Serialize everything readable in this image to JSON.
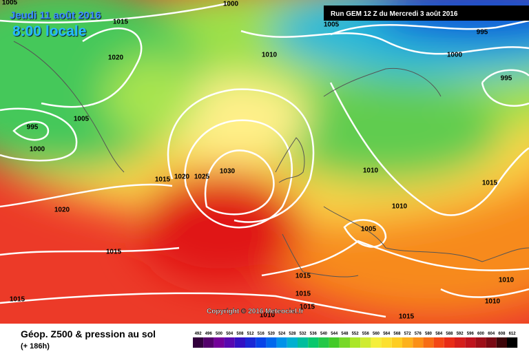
{
  "header": {
    "date": "Jeudi 11 août 2016",
    "time": "8:00 locale",
    "run": "Run GEM 12 Z du Mercredi 3 août 2016",
    "copyright": "Copyright © 2016 Meteociel.fr"
  },
  "isobar_labels": [
    1005,
    1000,
    1015,
    1005,
    995,
    1020,
    1010,
    1000,
    995,
    1005,
    995,
    1000,
    1030,
    1010,
    1015,
    1020,
    1025,
    1015,
    1010,
    1020,
    1005,
    1015,
    1015,
    1010,
    1015,
    1015,
    1015,
    1010,
    1010,
    1015
  ],
  "legend": {
    "title": "Géop. Z500 & pression au sol",
    "lead": "(+ 186h)",
    "scale": [
      492,
      496,
      500,
      504,
      508,
      512,
      516,
      520,
      524,
      528,
      532,
      536,
      540,
      544,
      548,
      552,
      556,
      560,
      564,
      568,
      572,
      576,
      580,
      584,
      588,
      592,
      596,
      600,
      604,
      608,
      612
    ]
  }
}
